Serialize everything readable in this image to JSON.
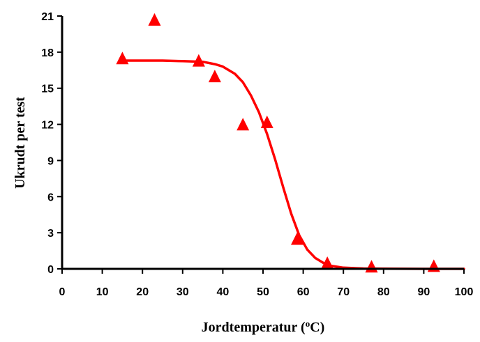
{
  "chart_data": {
    "type": "scatter",
    "xlabel": "Jordtemperatur (",
    "xlabel_superscript": "o",
    "xlabel_suffix": "C)",
    "ylabel": "Ukrudt per test",
    "xlim": [
      0,
      100
    ],
    "ylim": [
      0,
      21
    ],
    "x_ticks": [
      0,
      10,
      20,
      30,
      40,
      50,
      60,
      70,
      80,
      90,
      100
    ],
    "y_ticks": [
      0,
      3,
      6,
      9,
      12,
      15,
      18,
      21
    ],
    "grid": false,
    "legend": "none",
    "series": [
      {
        "type": "scatter",
        "marker": "triangle",
        "color": "#ff0000",
        "points": [
          {
            "x": 15,
            "y": 17.4
          },
          {
            "x": 23,
            "y": 20.6
          },
          {
            "x": 34,
            "y": 17.2
          },
          {
            "x": 38,
            "y": 15.9
          },
          {
            "x": 45,
            "y": 11.9
          },
          {
            "x": 51,
            "y": 12.1
          },
          {
            "x": 58.5,
            "y": 2.4
          },
          {
            "x": 66,
            "y": 0.4
          },
          {
            "x": 77,
            "y": 0.1
          },
          {
            "x": 92.5,
            "y": 0.15
          }
        ]
      },
      {
        "type": "line",
        "color": "#ff0000",
        "points": [
          {
            "x": 15,
            "y": 17.3
          },
          {
            "x": 20,
            "y": 17.3
          },
          {
            "x": 25,
            "y": 17.3
          },
          {
            "x": 30,
            "y": 17.25
          },
          {
            "x": 35,
            "y": 17.2
          },
          {
            "x": 38,
            "y": 17.0
          },
          {
            "x": 40,
            "y": 16.8
          },
          {
            "x": 43,
            "y": 16.2
          },
          {
            "x": 45,
            "y": 15.5
          },
          {
            "x": 47,
            "y": 14.4
          },
          {
            "x": 49,
            "y": 13.0
          },
          {
            "x": 51,
            "y": 11.2
          },
          {
            "x": 53,
            "y": 9.1
          },
          {
            "x": 55,
            "y": 6.8
          },
          {
            "x": 57,
            "y": 4.6
          },
          {
            "x": 59,
            "y": 2.8
          },
          {
            "x": 61,
            "y": 1.6
          },
          {
            "x": 63,
            "y": 0.9
          },
          {
            "x": 65,
            "y": 0.5
          },
          {
            "x": 67,
            "y": 0.25
          },
          {
            "x": 70,
            "y": 0.1
          },
          {
            "x": 75,
            "y": 0.03
          },
          {
            "x": 80,
            "y": 0.01
          },
          {
            "x": 90,
            "y": 0.0
          },
          {
            "x": 100,
            "y": 0.0
          }
        ]
      }
    ]
  }
}
